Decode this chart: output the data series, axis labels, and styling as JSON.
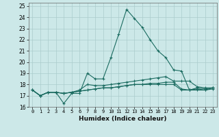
{
  "xlabel": "Humidex (Indice chaleur)",
  "x_ticks": [
    0,
    1,
    2,
    3,
    4,
    5,
    6,
    7,
    8,
    9,
    10,
    11,
    12,
    13,
    14,
    15,
    16,
    17,
    18,
    19,
    20,
    21,
    22,
    23
  ],
  "xlim": [
    -0.5,
    23.5
  ],
  "ylim": [
    16,
    25.3
  ],
  "y_ticks": [
    16,
    17,
    18,
    19,
    20,
    21,
    22,
    23,
    24,
    25
  ],
  "bg_color": "#cce8e8",
  "grid_color": "#aacccc",
  "line_color": "#1a6b60",
  "series": [
    [
      17.5,
      17.0,
      17.3,
      17.3,
      16.3,
      17.2,
      17.2,
      19.0,
      18.5,
      18.5,
      20.4,
      22.5,
      24.7,
      23.9,
      23.1,
      22.0,
      21.0,
      20.4,
      19.3,
      19.2,
      17.5,
      17.7,
      17.6,
      17.7
    ],
    [
      17.5,
      17.0,
      17.3,
      17.3,
      17.2,
      17.3,
      17.5,
      18.0,
      17.9,
      17.9,
      18.0,
      18.1,
      18.2,
      18.3,
      18.4,
      18.5,
      18.6,
      18.7,
      18.3,
      18.3,
      18.3,
      17.8,
      17.7,
      17.7
    ],
    [
      17.5,
      17.0,
      17.3,
      17.3,
      17.2,
      17.3,
      17.4,
      17.5,
      17.6,
      17.7,
      17.7,
      17.8,
      17.9,
      18.0,
      18.0,
      18.1,
      18.1,
      18.2,
      18.2,
      17.6,
      17.5,
      17.6,
      17.5,
      17.7
    ],
    [
      17.5,
      17.0,
      17.3,
      17.3,
      17.2,
      17.3,
      17.4,
      17.5,
      17.6,
      17.7,
      17.7,
      17.8,
      17.9,
      18.0,
      18.0,
      18.0,
      18.0,
      18.0,
      18.0,
      17.5,
      17.5,
      17.5,
      17.5,
      17.6
    ]
  ]
}
